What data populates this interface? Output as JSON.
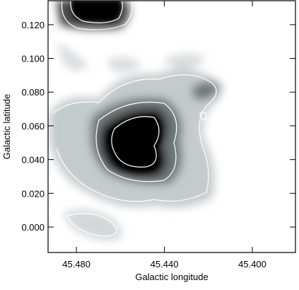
{
  "chart_data": {
    "type": "image",
    "xlabel": "Galactic longitude",
    "ylabel": "Galactic latitude",
    "xlim": [
      45.4929,
      45.3804
    ],
    "ylim": [
      -0.0151,
      0.1342
    ],
    "xticks": [
      {
        "value": 45.48,
        "label": "45.480"
      },
      {
        "value": 45.44,
        "label": "45.440"
      },
      {
        "value": 45.4,
        "label": "45.400"
      }
    ],
    "yticks": [
      {
        "value": 0,
        "label": "0.000"
      },
      {
        "value": 0.02,
        "label": "0.020"
      },
      {
        "value": 0.04,
        "label": "0.040"
      },
      {
        "value": 0.06,
        "label": "0.060"
      },
      {
        "value": 0.08,
        "label": "0.080"
      },
      {
        "value": 0.1,
        "label": "0.100"
      },
      {
        "value": 0.12,
        "label": "0.120"
      }
    ]
  }
}
